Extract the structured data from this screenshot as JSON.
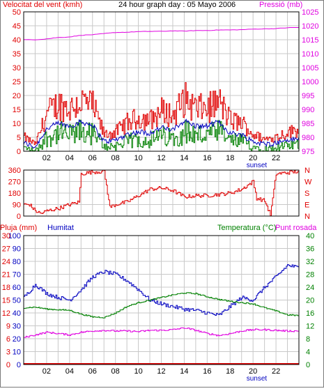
{
  "header": {
    "title": "24 hour graph day : 05 Mayo 2006",
    "wind_label": "Velocitat del vent (kmh)",
    "pressure_label": "Pressió (mb)"
  },
  "colors": {
    "background": "#ffffff",
    "frame": "#000000",
    "grid": "#c8c8c8",
    "wind_gust": "#e00000",
    "wind_avg": "#0000c0",
    "wind_low": "#008000",
    "pressure": "#e000e0",
    "direction": "#e00000",
    "humidity": "#0000c0",
    "temperature": "#008000",
    "dewpoint": "#e000e0",
    "rain": "#e00000"
  },
  "panels": {
    "wind": {
      "y_left_ticks": [
        "0",
        "5",
        "10",
        "15",
        "20",
        "25",
        "30",
        "35",
        "40",
        "45",
        "50"
      ],
      "y_right_ticks": [
        "975",
        "980",
        "985",
        "990",
        "995",
        "1000",
        "1005",
        "1010",
        "1015",
        "1020",
        "1025"
      ]
    },
    "direction": {
      "y_left_ticks": [
        "0",
        "90",
        "180",
        "270",
        "360"
      ],
      "y_right_ticks": [
        "N",
        "E",
        "S",
        "W",
        "N"
      ]
    },
    "climate": {
      "rain_label": "Pluja (mm)",
      "humidity_label": "Humitat",
      "temperature_label": "Temperatura (°C)",
      "dewpoint_label": "Punt rosada",
      "y_left_ticks": [
        "0",
        "10",
        "20",
        "30",
        "40",
        "50",
        "60",
        "70",
        "80",
        "90",
        "100"
      ],
      "y_left_rain_ticks": [
        "0",
        "3",
        "6",
        "9",
        "12",
        "15",
        "18",
        "21",
        "24",
        "27",
        "30"
      ],
      "y_right_ticks": [
        "0",
        "4",
        "8",
        "12",
        "16",
        "20",
        "24",
        "28",
        "32",
        "36",
        "40"
      ]
    }
  },
  "x_axis": {
    "ticks": [
      "02",
      "04",
      "06",
      "08",
      "10",
      "12",
      "14",
      "16",
      "18",
      "20",
      "22"
    ],
    "sunset_label": "sunset"
  },
  "chart_data": [
    {
      "type": "line",
      "title": "Velocitat del vent (kmh)",
      "ylabel": "Velocitat del vent (kmh)",
      "ylim": [
        0,
        50
      ],
      "y2label": "Pressió (mb)",
      "y2lim": [
        975,
        1025
      ],
      "x_hours": [
        0,
        1,
        2,
        3,
        4,
        5,
        6,
        7,
        8,
        9,
        10,
        11,
        12,
        13,
        14,
        15,
        16,
        17,
        18,
        19,
        20,
        21,
        22,
        23,
        24
      ],
      "series": [
        {
          "name": "Velocitat del vent",
          "axis": "left",
          "values": [
            6,
            3,
            16,
            20,
            18,
            21,
            19,
            7,
            8,
            12,
            14,
            13,
            17,
            15,
            22,
            18,
            18,
            21,
            13,
            12,
            7,
            5,
            6,
            8,
            9
          ]
        },
        {
          "name": "Pressió",
          "axis": "right",
          "values": [
            1015.0,
            1015.0,
            1015.3,
            1015.8,
            1016.0,
            1016.6,
            1016.8,
            1017.2,
            1017.6,
            1017.7,
            1017.9,
            1018.0,
            1018.0,
            1018.2,
            1018.1,
            1018.3,
            1018.3,
            1018.5,
            1018.5,
            1018.6,
            1018.8,
            1018.9,
            1019.0,
            1019.3,
            1019.4
          ]
        }
      ]
    },
    {
      "type": "line",
      "ylim": [
        0,
        360
      ],
      "x_hours": [
        0,
        0.5,
        1,
        1.5,
        2,
        3,
        4,
        4.8,
        5,
        6,
        7,
        7.5,
        8,
        9,
        10,
        11,
        12,
        13,
        14,
        15,
        16,
        17,
        18,
        19,
        20,
        20.3,
        21,
        21.5,
        22,
        23,
        24
      ],
      "series": [
        {
          "name": "Direcció",
          "values": [
            90,
            90,
            40,
            20,
            40,
            60,
            90,
            110,
            330,
            345,
            350,
            70,
            90,
            110,
            160,
            210,
            220,
            200,
            150,
            160,
            160,
            170,
            180,
            210,
            270,
            140,
            120,
            10,
            330,
            340,
            350
          ]
        }
      ]
    },
    {
      "type": "line",
      "title": "Temperatura (°C)",
      "ylim": [
        0,
        100
      ],
      "y2lim": [
        0,
        40
      ],
      "x_hours": [
        0,
        1,
        2,
        3,
        4,
        5,
        6,
        7,
        8,
        9,
        10,
        11,
        12,
        13,
        14,
        15,
        16,
        17,
        18,
        19,
        20,
        21,
        22,
        23,
        24
      ],
      "series": [
        {
          "name": "Humitat",
          "axis": "left",
          "values": [
            52,
            62,
            55,
            52,
            50,
            58,
            68,
            72,
            70,
            65,
            58,
            50,
            47,
            45,
            43,
            42,
            40,
            38,
            45,
            52,
            50,
            60,
            68,
            77,
            75
          ]
        },
        {
          "name": "Temperatura (°C)",
          "axis": "right",
          "values": [
            17.6,
            17.8,
            17.2,
            17.0,
            16.8,
            15.6,
            14.8,
            14.6,
            16.0,
            18.0,
            19.2,
            20.0,
            20.8,
            21.6,
            22.2,
            22.0,
            21.0,
            20.2,
            19.6,
            19.2,
            18.8,
            17.6,
            16.6,
            15.4,
            15.2
          ]
        },
        {
          "name": "Punt rosada",
          "axis": "right",
          "values": [
            8.4,
            9.2,
            10.0,
            9.6,
            9.2,
            10.0,
            10.4,
            10.6,
            10.4,
            10.4,
            10.2,
            10.6,
            10.6,
            10.8,
            11.4,
            10.6,
            9.6,
            9.0,
            9.6,
            10.4,
            10.8,
            10.8,
            10.6,
            10.4,
            10.4
          ]
        },
        {
          "name": "Pluja",
          "axis": "rain",
          "values": [
            0,
            0,
            0,
            0,
            0,
            0,
            0,
            0,
            0,
            0,
            0,
            0,
            0,
            0,
            0,
            0,
            0,
            0,
            0,
            0,
            0,
            0,
            0,
            0,
            0
          ]
        }
      ]
    }
  ]
}
